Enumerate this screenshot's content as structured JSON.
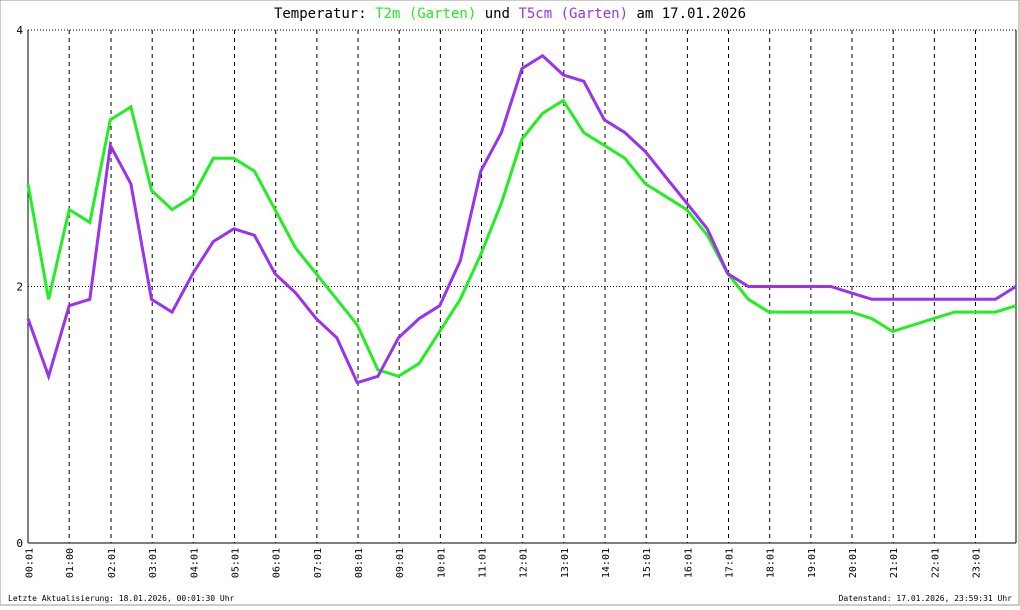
{
  "chart_data": {
    "type": "line",
    "title_prefix": "Temperatur:",
    "title_join": "und",
    "title_date": "am 17.01.2026",
    "footer_left": "Letzte Aktualisierung: 18.01.2026, 00:01:30 Uhr",
    "footer_right": "Datenstand: 17.01.2026, 23:59:31 Uhr",
    "x": [
      0,
      0.5,
      1,
      1.5,
      2,
      2.5,
      3,
      3.5,
      4,
      4.5,
      5,
      5.5,
      6,
      6.5,
      7,
      7.5,
      8,
      8.5,
      9,
      9.5,
      10,
      10.5,
      11,
      11.5,
      12,
      12.5,
      13,
      13.5,
      14,
      14.5,
      15,
      15.5,
      16,
      16.5,
      17,
      17.5,
      18,
      18.5,
      19,
      19.5,
      20,
      20.5,
      21,
      21.5,
      22,
      22.5,
      23,
      23.5,
      24
    ],
    "series": [
      {
        "name": "T2m (Garten)",
        "color": "#22ee22",
        "values": [
          2.8,
          1.9,
          2.6,
          2.5,
          3.3,
          3.4,
          2.75,
          2.6,
          2.7,
          3.0,
          3.0,
          2.9,
          2.6,
          2.3,
          2.1,
          1.9,
          1.7,
          1.35,
          1.3,
          1.4,
          1.65,
          1.9,
          2.25,
          2.65,
          3.15,
          3.35,
          3.45,
          3.2,
          3.1,
          3.0,
          2.8,
          2.7,
          2.6,
          2.4,
          2.1,
          1.9,
          1.8,
          1.8,
          1.8,
          1.8,
          1.8,
          1.75,
          1.65,
          1.7,
          1.75,
          1.8,
          1.8,
          1.8,
          1.85
        ]
      },
      {
        "name": "T5cm (Garten)",
        "color": "#9933ee",
        "values": [
          1.75,
          1.3,
          1.85,
          1.9,
          3.1,
          2.8,
          1.9,
          1.8,
          2.1,
          2.35,
          2.45,
          2.4,
          2.1,
          1.95,
          1.75,
          1.6,
          1.25,
          1.3,
          1.6,
          1.75,
          1.85,
          2.2,
          2.9,
          3.2,
          3.7,
          3.8,
          3.65,
          3.6,
          3.3,
          3.2,
          3.05,
          2.85,
          2.65,
          2.45,
          2.1,
          2.0,
          2.0,
          2.0,
          2.0,
          2.0,
          1.95,
          1.9,
          1.9,
          1.9,
          1.9,
          1.9,
          1.9,
          1.9,
          2.0
        ]
      }
    ],
    "xlim": [
      0,
      24
    ],
    "xticks": [
      {
        "value": 0.017,
        "label": "00:01"
      },
      {
        "value": 1,
        "label": "01:00"
      },
      {
        "value": 2.017,
        "label": "02:01"
      },
      {
        "value": 3.017,
        "label": "03:01"
      },
      {
        "value": 4.017,
        "label": "04:01"
      },
      {
        "value": 5.017,
        "label": "05:01"
      },
      {
        "value": 6.017,
        "label": "06:01"
      },
      {
        "value": 7.017,
        "label": "07:01"
      },
      {
        "value": 8.017,
        "label": "08:01"
      },
      {
        "value": 9.017,
        "label": "09:01"
      },
      {
        "value": 10.017,
        "label": "10:01"
      },
      {
        "value": 11.017,
        "label": "11:01"
      },
      {
        "value": 12.017,
        "label": "12:01"
      },
      {
        "value": 13.017,
        "label": "13:01"
      },
      {
        "value": 14.017,
        "label": "14:01"
      },
      {
        "value": 15.017,
        "label": "15:01"
      },
      {
        "value": 16.017,
        "label": "16:01"
      },
      {
        "value": 17.017,
        "label": "17:01"
      },
      {
        "value": 18.017,
        "label": "18:01"
      },
      {
        "value": 19.017,
        "label": "19:01"
      },
      {
        "value": 20.017,
        "label": "20:01"
      },
      {
        "value": 21.017,
        "label": "21:01"
      },
      {
        "value": 22.017,
        "label": "22:01"
      },
      {
        "value": 23.017,
        "label": "23:01"
      }
    ],
    "ylim": [
      0,
      4
    ],
    "yticks": [
      0,
      2,
      4
    ],
    "grid": true
  }
}
